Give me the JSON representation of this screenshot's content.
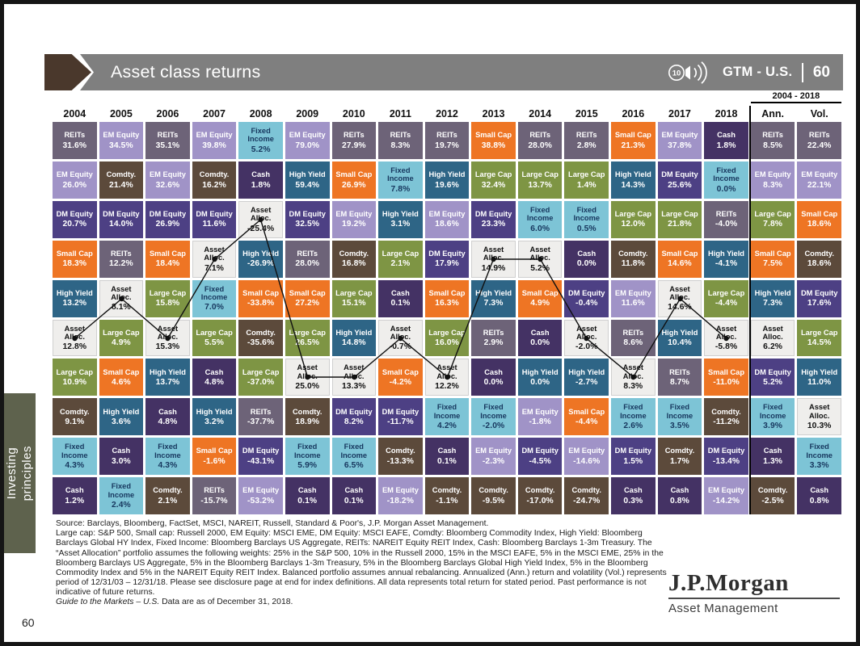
{
  "header": {
    "title": "Asset class returns",
    "audio_badge": "10",
    "gtm_label": "GTM - U.S.",
    "gtm_page": "60"
  },
  "side_tab": {
    "label": "Investing\nprinciples"
  },
  "chart_data": {
    "type": "table",
    "title": "Asset class returns",
    "summary_period": "2004 - 2018",
    "line_overlay_asset": "Asset Alloc.",
    "legend_position": "none",
    "asset_styles": {
      "REITs": {
        "bg": "#6d6378",
        "fg": "#ffffff"
      },
      "EM Equity": {
        "bg": "#a093c7",
        "fg": "#ffffff"
      },
      "DM Equity": {
        "bg": "#4d4084",
        "fg": "#ffffff"
      },
      "Small Cap": {
        "bg": "#ee7524",
        "fg": "#ffffff"
      },
      "Large Cap": {
        "bg": "#7e9544",
        "fg": "#ffffff"
      },
      "High Yield": {
        "bg": "#2e6586",
        "fg": "#ffffff"
      },
      "Fixed Income": {
        "bg": "#7dc4d6",
        "fg": "#17375e"
      },
      "Cash": {
        "bg": "#443264",
        "fg": "#ffffff"
      },
      "Comdty.": {
        "bg": "#5c4a3b",
        "fg": "#ffffff"
      },
      "Asset Alloc.": {
        "bg": "#efeeec",
        "fg": "#111111",
        "border": "#cfcfcf"
      }
    },
    "columns": [
      {
        "label": "2004",
        "cells": [
          [
            "REITs",
            "31.6%"
          ],
          [
            "EM Equity",
            "26.0%"
          ],
          [
            "DM Equity",
            "20.7%"
          ],
          [
            "Small Cap",
            "18.3%"
          ],
          [
            "High Yield",
            "13.2%"
          ],
          [
            "Asset Alloc.",
            "12.8%"
          ],
          [
            "Large Cap",
            "10.9%"
          ],
          [
            "Comdty.",
            "9.1%"
          ],
          [
            "Fixed Income",
            "4.3%"
          ],
          [
            "Cash",
            "1.2%"
          ]
        ]
      },
      {
        "label": "2005",
        "cells": [
          [
            "EM Equity",
            "34.5%"
          ],
          [
            "Comdty.",
            "21.4%"
          ],
          [
            "DM Equity",
            "14.0%"
          ],
          [
            "REITs",
            "12.2%"
          ],
          [
            "Asset Alloc.",
            "8.1%"
          ],
          [
            "Large Cap",
            "4.9%"
          ],
          [
            "Small Cap",
            "4.6%"
          ],
          [
            "High Yield",
            "3.6%"
          ],
          [
            "Cash",
            "3.0%"
          ],
          [
            "Fixed Income",
            "2.4%"
          ]
        ]
      },
      {
        "label": "2006",
        "cells": [
          [
            "REITs",
            "35.1%"
          ],
          [
            "EM Equity",
            "32.6%"
          ],
          [
            "DM Equity",
            "26.9%"
          ],
          [
            "Small Cap",
            "18.4%"
          ],
          [
            "Large Cap",
            "15.8%"
          ],
          [
            "Asset Alloc.",
            "15.3%"
          ],
          [
            "High Yield",
            "13.7%"
          ],
          [
            "Cash",
            "4.8%"
          ],
          [
            "Fixed Income",
            "4.3%"
          ],
          [
            "Comdty.",
            "2.1%"
          ]
        ]
      },
      {
        "label": "2007",
        "cells": [
          [
            "EM Equity",
            "39.8%"
          ],
          [
            "Comdty.",
            "16.2%"
          ],
          [
            "DM Equity",
            "11.6%"
          ],
          [
            "Asset Alloc.",
            "7.1%"
          ],
          [
            "Fixed Income",
            "7.0%"
          ],
          [
            "Large Cap",
            "5.5%"
          ],
          [
            "Cash",
            "4.8%"
          ],
          [
            "High Yield",
            "3.2%"
          ],
          [
            "Small Cap",
            "-1.6%"
          ],
          [
            "REITs",
            "-15.7%"
          ]
        ]
      },
      {
        "label": "2008",
        "cells": [
          [
            "Fixed Income",
            "5.2%"
          ],
          [
            "Cash",
            "1.8%"
          ],
          [
            "Asset Alloc.",
            "-25.4%"
          ],
          [
            "High Yield",
            "-26.9%"
          ],
          [
            "Small Cap",
            "-33.8%"
          ],
          [
            "Comdty.",
            "-35.6%"
          ],
          [
            "Large Cap",
            "-37.0%"
          ],
          [
            "REITs",
            "-37.7%"
          ],
          [
            "DM Equity",
            "-43.1%"
          ],
          [
            "EM Equity",
            "-53.2%"
          ]
        ]
      },
      {
        "label": "2009",
        "cells": [
          [
            "EM Equity",
            "79.0%"
          ],
          [
            "High Yield",
            "59.4%"
          ],
          [
            "DM Equity",
            "32.5%"
          ],
          [
            "REITs",
            "28.0%"
          ],
          [
            "Small Cap",
            "27.2%"
          ],
          [
            "Large Cap",
            "26.5%"
          ],
          [
            "Asset Alloc.",
            "25.0%"
          ],
          [
            "Comdty.",
            "18.9%"
          ],
          [
            "Fixed Income",
            "5.9%"
          ],
          [
            "Cash",
            "0.1%"
          ]
        ]
      },
      {
        "label": "2010",
        "cells": [
          [
            "REITs",
            "27.9%"
          ],
          [
            "Small Cap",
            "26.9%"
          ],
          [
            "EM Equity",
            "19.2%"
          ],
          [
            "Comdty.",
            "16.8%"
          ],
          [
            "Large Cap",
            "15.1%"
          ],
          [
            "High Yield",
            "14.8%"
          ],
          [
            "Asset Alloc.",
            "13.3%"
          ],
          [
            "DM Equity",
            "8.2%"
          ],
          [
            "Fixed Income",
            "6.5%"
          ],
          [
            "Cash",
            "0.1%"
          ]
        ]
      },
      {
        "label": "2011",
        "cells": [
          [
            "REITs",
            "8.3%"
          ],
          [
            "Fixed Income",
            "7.8%"
          ],
          [
            "High Yield",
            "3.1%"
          ],
          [
            "Large Cap",
            "2.1%"
          ],
          [
            "Cash",
            "0.1%"
          ],
          [
            "Asset Alloc.",
            "-0.7%"
          ],
          [
            "Small Cap",
            "-4.2%"
          ],
          [
            "DM Equity",
            "-11.7%"
          ],
          [
            "Comdty.",
            "-13.3%"
          ],
          [
            "EM Equity",
            "-18.2%"
          ]
        ]
      },
      {
        "label": "2012",
        "cells": [
          [
            "REITs",
            "19.7%"
          ],
          [
            "High Yield",
            "19.6%"
          ],
          [
            "EM Equity",
            "18.6%"
          ],
          [
            "DM Equity",
            "17.9%"
          ],
          [
            "Small Cap",
            "16.3%"
          ],
          [
            "Large Cap",
            "16.0%"
          ],
          [
            "Asset Alloc.",
            "12.2%"
          ],
          [
            "Fixed Income",
            "4.2%"
          ],
          [
            "Cash",
            "0.1%"
          ],
          [
            "Comdty.",
            "-1.1%"
          ]
        ]
      },
      {
        "label": "2013",
        "cells": [
          [
            "Small Cap",
            "38.8%"
          ],
          [
            "Large Cap",
            "32.4%"
          ],
          [
            "DM Equity",
            "23.3%"
          ],
          [
            "Asset Alloc.",
            "14.9%"
          ],
          [
            "High Yield",
            "7.3%"
          ],
          [
            "REITs",
            "2.9%"
          ],
          [
            "Cash",
            "0.0%"
          ],
          [
            "Fixed Income",
            "-2.0%"
          ],
          [
            "EM Equity",
            "-2.3%"
          ],
          [
            "Comdty.",
            "-9.5%"
          ]
        ]
      },
      {
        "label": "2014",
        "cells": [
          [
            "REITs",
            "28.0%"
          ],
          [
            "Large Cap",
            "13.7%"
          ],
          [
            "Fixed Income",
            "6.0%"
          ],
          [
            "Asset Alloc.",
            "5.2%"
          ],
          [
            "Small Cap",
            "4.9%"
          ],
          [
            "Cash",
            "0.0%"
          ],
          [
            "High Yield",
            "0.0%"
          ],
          [
            "EM Equity",
            "-1.8%"
          ],
          [
            "DM Equity",
            "-4.5%"
          ],
          [
            "Comdty.",
            "-17.0%"
          ]
        ]
      },
      {
        "label": "2015",
        "cells": [
          [
            "REITs",
            "2.8%"
          ],
          [
            "Large Cap",
            "1.4%"
          ],
          [
            "Fixed Income",
            "0.5%"
          ],
          [
            "Cash",
            "0.0%"
          ],
          [
            "DM Equity",
            "-0.4%"
          ],
          [
            "Asset Alloc.",
            "-2.0%"
          ],
          [
            "High Yield",
            "-2.7%"
          ],
          [
            "Small Cap",
            "-4.4%"
          ],
          [
            "EM Equity",
            "-14.6%"
          ],
          [
            "Comdty.",
            "-24.7%"
          ]
        ]
      },
      {
        "label": "2016",
        "cells": [
          [
            "Small Cap",
            "21.3%"
          ],
          [
            "High Yield",
            "14.3%"
          ],
          [
            "Large Cap",
            "12.0%"
          ],
          [
            "Comdty.",
            "11.8%"
          ],
          [
            "EM Equity",
            "11.6%"
          ],
          [
            "REITs",
            "8.6%"
          ],
          [
            "Asset Alloc.",
            "8.3%"
          ],
          [
            "Fixed Income",
            "2.6%"
          ],
          [
            "DM Equity",
            "1.5%"
          ],
          [
            "Cash",
            "0.3%"
          ]
        ]
      },
      {
        "label": "2017",
        "cells": [
          [
            "EM Equity",
            "37.8%"
          ],
          [
            "DM Equity",
            "25.6%"
          ],
          [
            "Large Cap",
            "21.8%"
          ],
          [
            "Small Cap",
            "14.6%"
          ],
          [
            "Asset Alloc.",
            "14.6%"
          ],
          [
            "High Yield",
            "10.4%"
          ],
          [
            "REITs",
            "8.7%"
          ],
          [
            "Fixed Income",
            "3.5%"
          ],
          [
            "Comdty.",
            "1.7%"
          ],
          [
            "Cash",
            "0.8%"
          ]
        ]
      },
      {
        "label": "2018",
        "cells": [
          [
            "Cash",
            "1.8%"
          ],
          [
            "Fixed Income",
            "0.0%"
          ],
          [
            "REITs",
            "-4.0%"
          ],
          [
            "High Yield",
            "-4.1%"
          ],
          [
            "Large Cap",
            "-4.4%"
          ],
          [
            "Asset Alloc.",
            "-5.8%"
          ],
          [
            "Small Cap",
            "-11.0%"
          ],
          [
            "Comdty.",
            "-11.2%"
          ],
          [
            "DM Equity",
            "-13.4%"
          ],
          [
            "EM Equity",
            "-14.2%"
          ]
        ]
      },
      {
        "label": "Ann.",
        "summary": true,
        "cells": [
          [
            "REITs",
            "8.5%"
          ],
          [
            "EM Equity",
            "8.3%"
          ],
          [
            "Large Cap",
            "7.8%"
          ],
          [
            "Small Cap",
            "7.5%"
          ],
          [
            "High Yield",
            "7.3%"
          ],
          [
            "Asset Alloc.",
            "6.2%"
          ],
          [
            "DM Equity",
            "5.2%"
          ],
          [
            "Fixed Income",
            "3.9%"
          ],
          [
            "Cash",
            "1.3%"
          ],
          [
            "Comdty.",
            "-2.5%"
          ]
        ]
      },
      {
        "label": "Vol.",
        "summary": true,
        "cells": [
          [
            "REITs",
            "22.4%"
          ],
          [
            "EM Equity",
            "22.1%"
          ],
          [
            "Small Cap",
            "18.6%"
          ],
          [
            "Comdty.",
            "18.6%"
          ],
          [
            "DM Equity",
            "17.6%"
          ],
          [
            "Large Cap",
            "14.5%"
          ],
          [
            "High Yield",
            "11.0%"
          ],
          [
            "Asset Alloc.",
            "10.3%"
          ],
          [
            "Fixed Income",
            "3.3%"
          ],
          [
            "Cash",
            "0.8%"
          ]
        ]
      }
    ]
  },
  "footer": {
    "source_line": "Source: Barclays, Bloomberg, FactSet, MSCI, NAREIT, Russell, Standard & Poor's, J.P. Morgan Asset Management.",
    "definitions": "Large cap: S&P 500, Small cap: Russell 2000, EM Equity: MSCI EME, DM Equity: MSCI EAFE, Comdty: Bloomberg Commodity Index, High Yield: Bloomberg Barclays Global HY Index, Fixed Income: Bloomberg Barclays US Aggregate, REITs: NAREIT Equity REIT Index, Cash: Bloomberg Barclays 1-3m Treasury. The “Asset Allocation” portfolio assumes the following weights: 25% in the S&P 500, 10% in the Russell 2000, 15% in the MSCI EAFE, 5% in the MSCI EME, 25% in the Bloomberg Barclays US Aggregate, 5% in the Bloomberg Barclays 1-3m Treasury, 5% in the Bloomberg Barclays Global High Yield Index, 5% in the Bloomberg Commodity Index and 5% in the NAREIT Equity REIT Index. Balanced portfolio assumes annual rebalancing. Annualized (Ann.) return and volatility (Vol.) represents period of 12/31/03 – 12/31/18. Please see disclosure page at end for index definitions. All data represents total return for stated period. Past performance is not indicative of future returns.",
    "gtm_italic": "Guide to the Markets – U.S.",
    "gtm_rest": " Data are as of December 31, 2018.",
    "page_number": "60",
    "logo": "J.P.Morgan",
    "logo_sub": "Asset Management"
  }
}
